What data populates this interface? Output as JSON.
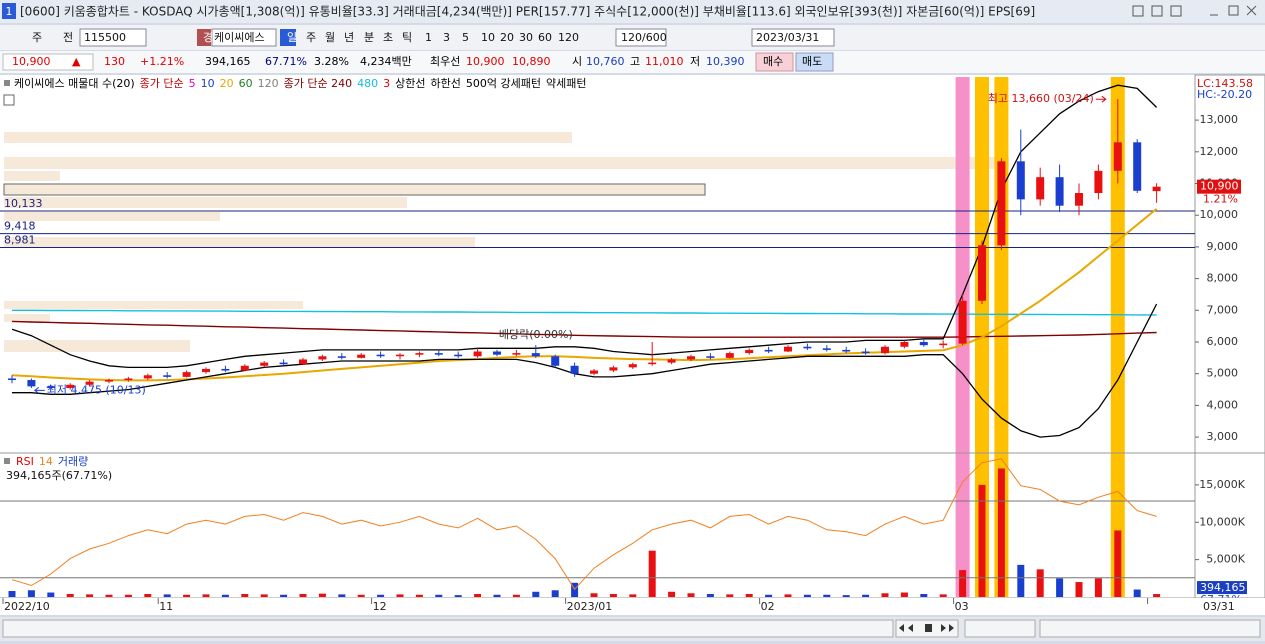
{
  "window": {
    "number": "1",
    "title": "[0600] 키움종합차트 - KOSDAQ 시가총액[1,308(억)] 유통비율[33.3] 거래대금[4,234(백만)] PER[157.77] 주식수[12,000(천)] 부채비율[113.6] 외국인보유[393(천)] 자본금[60(억)] EPS[69]"
  },
  "toolbar": [
    "주",
    "전",
    "115500",
    "경",
    "케이씨에스",
    "일",
    "주",
    "월",
    "년",
    "분",
    "초",
    "틱",
    "1",
    "3",
    "5",
    "10",
    "20",
    "30",
    "60",
    "120",
    "120/600",
    "2023/03/31"
  ],
  "quote": [
    {
      "text": "10,900",
      "color": "#e00000"
    },
    {
      "text": "▲",
      "color": "#e00000"
    },
    {
      "text": "130",
      "color": "#e00000"
    },
    {
      "text": "+1.21%",
      "color": "#e00000"
    },
    {
      "text": "394,165",
      "color": "#000000"
    },
    {
      "text": "67.71%",
      "color": "#000080"
    },
    {
      "text": "3.28%",
      "color": "#000000"
    },
    {
      "text": "4,234백만",
      "color": "#000000"
    },
    {
      "text": "최우선",
      "color": "#000000"
    },
    {
      "text": "10,900",
      "color": "#e00000"
    },
    {
      "text": "10,890",
      "color": "#e00000"
    },
    {
      "text": "시",
      "color": "#000000"
    },
    {
      "text": "10,760",
      "color": "#1a3fc0"
    },
    {
      "text": "고",
      "color": "#000000"
    },
    {
      "text": "11,010",
      "color": "#e00000"
    },
    {
      "text": "저",
      "color": "#000000"
    },
    {
      "text": "10,390",
      "color": "#1a3fc0"
    },
    {
      "text": "매수",
      "color": "#000000"
    },
    {
      "text": "매도",
      "color": "#000000"
    }
  ],
  "chart_data": [
    {
      "type": "candlestick",
      "legend": [
        {
          "text": "케이씨에스 매물대 수(20)",
          "color": "#000000"
        },
        {
          "text": "종가 단순",
          "color": "#c00000"
        },
        {
          "text": "5",
          "color": "#e000c0"
        },
        {
          "text": "10",
          "color": "#1a3fc0"
        },
        {
          "text": "20",
          "color": "#e8a800"
        },
        {
          "text": "60",
          "color": "#208020"
        },
        {
          "text": "120",
          "color": "#808080"
        },
        {
          "text": "종가 단순 240",
          "color": "#800000"
        },
        {
          "text": "480",
          "color": "#10c0e0"
        },
        {
          "text": "3",
          "color": "#e00000"
        },
        {
          "text": "상한선",
          "color": "#000000"
        },
        {
          "text": "하한선",
          "color": "#000000"
        },
        {
          "text": "500억 강세패턴",
          "color": "#000000"
        },
        {
          "text": "약세패턴",
          "color": "#000000"
        }
      ],
      "up_color": "#e81010",
      "down_color": "#1a3fd0",
      "open": [
        4850,
        4800,
        4600,
        4550,
        4650,
        4750,
        4800,
        4850,
        4950,
        4900,
        5050,
        5150,
        5100,
        5250,
        5350,
        5300,
        5450,
        5550,
        5500,
        5600,
        5550,
        5600,
        5650,
        5600,
        5550,
        5700,
        5600,
        5650,
        5550,
        5250,
        5000,
        5100,
        5200,
        5300,
        5350,
        5450,
        5550,
        5500,
        5650,
        5750,
        5700,
        5850,
        5800,
        5750,
        5700,
        5650,
        5850,
        6000,
        5900,
        5950,
        7300,
        9050,
        11700,
        10500,
        11200,
        10300,
        10700,
        11400,
        12300,
        10760
      ],
      "high": [
        4950,
        4850,
        4650,
        4700,
        4800,
        4850,
        4900,
        5000,
        5050,
        5100,
        5200,
        5250,
        5300,
        5400,
        5450,
        5500,
        5600,
        5650,
        5650,
        5700,
        5650,
        5700,
        5750,
        5700,
        5800,
        5750,
        5750,
        5900,
        5600,
        5350,
        5150,
        5250,
        5350,
        6000,
        5500,
        5600,
        5650,
        5700,
        5800,
        5850,
        5900,
        5950,
        5900,
        5850,
        5800,
        5900,
        6050,
        6100,
        6050,
        7500,
        9200,
        11800,
        12700,
        11500,
        11600,
        11000,
        11600,
        13660,
        12400,
        11010
      ],
      "low": [
        4700,
        4550,
        4475,
        4500,
        4600,
        4700,
        4750,
        4800,
        4850,
        4880,
        5000,
        5050,
        5080,
        5200,
        5250,
        5280,
        5400,
        5450,
        5480,
        5500,
        5450,
        5520,
        5550,
        5500,
        5500,
        5550,
        5550,
        5500,
        5200,
        4900,
        4950,
        5050,
        5150,
        5250,
        5300,
        5400,
        5450,
        5480,
        5600,
        5650,
        5680,
        5750,
        5700,
        5650,
        5600,
        5600,
        5800,
        5850,
        5800,
        5900,
        7200,
        8900,
        10000,
        10300,
        10100,
        10000,
        10500,
        11000,
        10700,
        10390
      ],
      "close": [
        4800,
        4600,
        4550,
        4650,
        4750,
        4800,
        4850,
        4950,
        4900,
        5050,
        5150,
        5100,
        5250,
        5350,
        5300,
        5450,
        5550,
        5500,
        5600,
        5550,
        5600,
        5650,
        5600,
        5550,
        5700,
        5600,
        5650,
        5550,
        5250,
        5000,
        5100,
        5200,
        5300,
        5350,
        5450,
        5550,
        5500,
        5650,
        5750,
        5700,
        5850,
        5800,
        5750,
        5700,
        5650,
        5850,
        6000,
        5900,
        5950,
        7300,
        9050,
        11700,
        10500,
        11200,
        10300,
        10700,
        11400,
        12300,
        10770,
        10900
      ],
      "lines": [
        {
          "color": "#10c0e0",
          "values": [
            7000,
            7000,
            6995,
            6995,
            6990,
            6990,
            6985,
            6985,
            6980,
            6980,
            6975,
            6975,
            6970,
            6970,
            6965,
            6965,
            6960,
            6960,
            6955,
            6955,
            6950,
            6950,
            6945,
            6945,
            6940,
            6940,
            6935,
            6935,
            6930,
            6930,
            6925,
            6925,
            6920,
            6920,
            6915,
            6915,
            6910,
            6910,
            6905,
            6905,
            6900,
            6900,
            6895,
            6895,
            6890,
            6890,
            6885,
            6885,
            6880,
            6880,
            6875,
            6875,
            6870,
            6870,
            6865,
            6865,
            6860,
            6860,
            6855,
            6855
          ]
        },
        {
          "color": "#800000",
          "values": [
            6650,
            6630,
            6620,
            6600,
            6590,
            6570,
            6560,
            6540,
            6530,
            6510,
            6500,
            6480,
            6470,
            6450,
            6440,
            6420,
            6410,
            6390,
            6380,
            6360,
            6350,
            6330,
            6320,
            6300,
            6290,
            6270,
            6260,
            6240,
            6230,
            6210,
            6200,
            6190,
            6180,
            6170,
            6160,
            6150,
            6150,
            6150,
            6150,
            6150,
            6150,
            6150,
            6150,
            6150,
            6150,
            6150,
            6150,
            6150,
            6150,
            6160,
            6170,
            6180,
            6190,
            6200,
            6210,
            6220,
            6240,
            6260,
            6280,
            6300
          ]
        },
        {
          "color": "#e8a800",
          "values": [
            4950,
            4920,
            4880,
            4850,
            4820,
            4800,
            4790,
            4790,
            4800,
            4820,
            4850,
            4880,
            4920,
            4960,
            5000,
            5050,
            5100,
            5150,
            5200,
            5250,
            5300,
            5350,
            5400,
            5430,
            5460,
            5500,
            5530,
            5550,
            5550,
            5530,
            5500,
            5480,
            5460,
            5450,
            5440,
            5430,
            5440,
            5460,
            5490,
            5520,
            5550,
            5580,
            5610,
            5640,
            5660,
            5680,
            5700,
            5720,
            5740,
            5900,
            6150,
            6500,
            6900,
            7300,
            7750,
            8200,
            8700,
            9200,
            9700,
            10200
          ]
        },
        {
          "color": "#000000",
          "values": [
            6400,
            6200,
            5900,
            5600,
            5400,
            5250,
            5200,
            5200,
            5200,
            5250,
            5350,
            5450,
            5550,
            5600,
            5650,
            5700,
            5750,
            5750,
            5750,
            5750,
            5750,
            5750,
            5750,
            5750,
            5800,
            5800,
            5800,
            5800,
            5850,
            5850,
            5800,
            5700,
            5650,
            5600,
            5650,
            5700,
            5750,
            5800,
            5850,
            5900,
            5950,
            6000,
            6000,
            6000,
            6050,
            6050,
            6050,
            6100,
            6100,
            7500,
            9000,
            10800,
            12000,
            12600,
            13200,
            13600,
            13900,
            14100,
            14000,
            13400
          ]
        },
        {
          "color": "#000000",
          "values": [
            4400,
            4400,
            4350,
            4350,
            4400,
            4450,
            4500,
            4600,
            4700,
            4800,
            4900,
            5000,
            5100,
            5200,
            5250,
            5300,
            5350,
            5400,
            5400,
            5400,
            5400,
            5400,
            5450,
            5450,
            5450,
            5450,
            5450,
            5350,
            5200,
            5000,
            4900,
            4900,
            4950,
            5000,
            5100,
            5200,
            5300,
            5350,
            5400,
            5450,
            5500,
            5550,
            5550,
            5550,
            5550,
            5550,
            5550,
            5600,
            5600,
            5000,
            4200,
            3600,
            3200,
            3000,
            3050,
            3300,
            3900,
            4800,
            6000,
            7200
          ]
        }
      ],
      "highlights": [
        {
          "index": 49,
          "color": "#f590c8"
        },
        {
          "index": 50,
          "color": "#ffc000"
        },
        {
          "index": 51,
          "color": "#ffc000"
        },
        {
          "index": 57,
          "color": "#ffc000"
        }
      ],
      "levels": [
        {
          "value": 10133,
          "label": "10,133"
        },
        {
          "value": 9418,
          "label": "9,418"
        },
        {
          "value": 8981,
          "label": "8,981"
        }
      ],
      "high_annotation": {
        "index": 57,
        "value": 13660,
        "text": "최고 13,660 (03/24)"
      },
      "low_annotation": {
        "index": 2,
        "value": 4475,
        "text": "최저 4,475 (10/13)"
      },
      "dividend_annotation": {
        "index": 27,
        "text": "배당락(0.00%)"
      },
      "last_price": {
        "value": 10900,
        "label": "10,900"
      },
      "last_change": "1.21%",
      "lc_label": "LC:143.58",
      "hc_label": "HC:-20.20",
      "ylim": [
        2530,
        14360
      ],
      "yticks": [
        {
          "value": 3000,
          "label": "3,000"
        },
        {
          "value": 4000,
          "label": "4,000"
        },
        {
          "value": 5000,
          "label": "5,000"
        },
        {
          "value": 6000,
          "label": "6,000"
        },
        {
          "value": 7000,
          "label": "7,000"
        },
        {
          "value": 8000,
          "label": "8,000"
        },
        {
          "value": 9000,
          "label": "9,000"
        },
        {
          "value": 10000,
          "label": "10,000"
        },
        {
          "value": 11000,
          "label": "11,000"
        },
        {
          "value": 12000,
          "label": "12,000"
        },
        {
          "value": 13000,
          "label": "13,000"
        }
      ]
    },
    {
      "type": "bar",
      "legend": [
        {
          "text": "RSI",
          "color": "#e00000"
        },
        {
          "text": "14",
          "color": "#f08020"
        },
        {
          "text": "거래량",
          "color": "#1a3fc0"
        }
      ],
      "subtitle": "394,165주(67.71%)",
      "categories": [
        "2022/10",
        null,
        null,
        null,
        null,
        null,
        null,
        null,
        "11",
        null,
        null,
        null,
        null,
        null,
        null,
        null,
        null,
        null,
        null,
        "12",
        null,
        null,
        null,
        null,
        null,
        null,
        null,
        null,
        null,
        "2023/01",
        null,
        null,
        null,
        null,
        null,
        null,
        null,
        null,
        null,
        "02",
        null,
        null,
        null,
        null,
        null,
        null,
        null,
        null,
        null,
        "03",
        null,
        null,
        null,
        null,
        null,
        null,
        null,
        null,
        null,
        "03/31"
      ],
      "values": [
        800000,
        900000,
        600000,
        400000,
        350000,
        300000,
        300000,
        400000,
        350000,
        300000,
        350000,
        300000,
        400000,
        350000,
        300000,
        400000,
        450000,
        350000,
        300000,
        300000,
        350000,
        300000,
        300000,
        250000,
        400000,
        300000,
        300000,
        700000,
        900000,
        1900000,
        500000,
        400000,
        350000,
        6200000,
        700000,
        500000,
        400000,
        350000,
        400000,
        300000,
        350000,
        300000,
        300000,
        250000,
        300000,
        500000,
        600000,
        400000,
        350000,
        3600000,
        15000000,
        17200000,
        4300000,
        3700000,
        2500000,
        2000000,
        2500000,
        8900000,
        1000000,
        394165
      ],
      "series": [
        {
          "color": "#f08020",
          "axis": "y2",
          "values": [
            29,
            26,
            32,
            40,
            45,
            48,
            52,
            55,
            53,
            58,
            60,
            58,
            62,
            63,
            60,
            64,
            62,
            58,
            60,
            57,
            59,
            62,
            58,
            56,
            61,
            55,
            57,
            50,
            40,
            24,
            35,
            42,
            48,
            55,
            58,
            60,
            56,
            62,
            63,
            58,
            62,
            60,
            55,
            54,
            52,
            58,
            62,
            58,
            60,
            80,
            90,
            92,
            78,
            76,
            70,
            68,
            72,
            75,
            65,
            62
          ]
        }
      ],
      "last_volume": {
        "value": 394165,
        "label": "394,165"
      },
      "last_ratio": "67.71%",
      "ylim": [
        0,
        19000000
      ],
      "yticks": [
        {
          "value": 5000000,
          "label": "5,000K"
        },
        {
          "value": 10000000,
          "label": "10,000K"
        },
        {
          "value": 15000000,
          "label": "15,000K"
        }
      ],
      "y2lim": [
        20,
        94
      ],
      "rsi_levels": [
        70,
        30
      ]
    }
  ]
}
